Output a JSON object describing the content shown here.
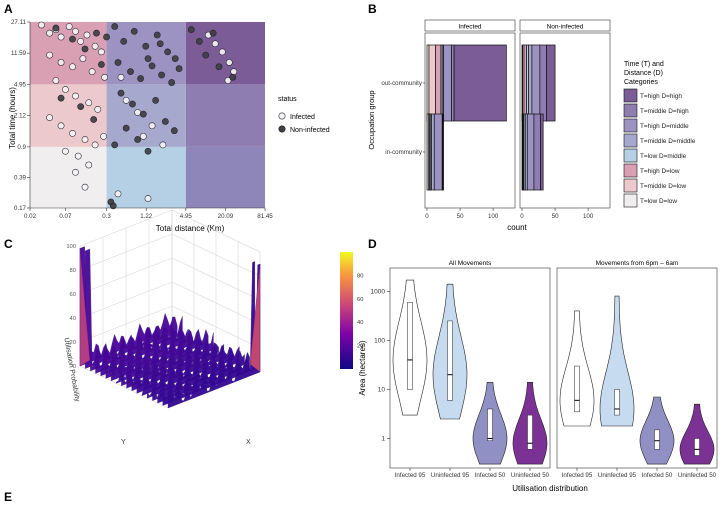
{
  "panel_letters": [
    "A",
    "B",
    "C",
    "D",
    "E"
  ],
  "chart_data": [
    {
      "panel": "A",
      "type": "scatter",
      "xlabel": "Total distance (Km)",
      "ylabel": "Total time (hours)",
      "xticks": [
        "0.02",
        "0.07",
        "0.3",
        "1.22",
        "4.95",
        "20.09",
        "81.45"
      ],
      "yticks": [
        "0.17",
        "0.39",
        "0.9",
        "2.12",
        "4.95",
        "11.59",
        "27.11"
      ],
      "legend": {
        "title": "status",
        "entries": [
          "Infected",
          "Non-infected"
        ]
      },
      "region_colors": [
        [
          "#f1eeef",
          "#b5cfe4",
          "#8e86b8"
        ],
        [
          "#ecc9cc",
          "#a6a8cd",
          "#8d7db0"
        ],
        [
          "#d9a0b4",
          "#9d93c2",
          "#7b5c96"
        ]
      ],
      "series": [
        {
          "name": "Infected",
          "color": "#f4f2f6",
          "points": [
            [
              0.03,
              25
            ],
            [
              0.04,
              20
            ],
            [
              0.05,
              22
            ],
            [
              0.06,
              18
            ],
            [
              0.08,
              24
            ],
            [
              0.1,
              21
            ],
            [
              0.12,
              16
            ],
            [
              0.15,
              19
            ],
            [
              0.2,
              14
            ],
            [
              0.25,
              12
            ],
            [
              0.04,
              11
            ],
            [
              0.06,
              9
            ],
            [
              0.09,
              8
            ],
            [
              0.13,
              10
            ],
            [
              0.18,
              7
            ],
            [
              0.28,
              6
            ],
            [
              0.05,
              5.5
            ],
            [
              0.07,
              4.3
            ],
            [
              0.1,
              3.6
            ],
            [
              0.16,
              3
            ],
            [
              0.22,
              2.5
            ],
            [
              0.04,
              2
            ],
            [
              0.06,
              1.6
            ],
            [
              0.09,
              1.3
            ],
            [
              0.14,
              1.1
            ],
            [
              0.2,
              0.95
            ],
            [
              0.27,
              1.2
            ],
            [
              0.07,
              0.8
            ],
            [
              0.11,
              0.7
            ],
            [
              0.16,
              0.55
            ],
            [
              0.1,
              0.45
            ],
            [
              0.14,
              0.3
            ],
            [
              0.6,
              3.2
            ],
            [
              0.9,
              2.3
            ],
            [
              1.5,
              1.6
            ],
            [
              0.5,
              6
            ],
            [
              1.1,
              1.2
            ],
            [
              2.2,
              0.95
            ],
            [
              0.45,
              0.25
            ],
            [
              1.3,
              0.22
            ],
            [
              11,
              19
            ],
            [
              14,
              15
            ],
            [
              18,
              12
            ],
            [
              23,
              9
            ],
            [
              27,
              7
            ],
            [
              22,
              5.5
            ]
          ]
        },
        {
          "name": "Non-infected",
          "color": "#3e3e44",
          "points": [
            [
              0.05,
              23
            ],
            [
              0.09,
              17
            ],
            [
              0.14,
              13
            ],
            [
              0.21,
              20
            ],
            [
              0.3,
              18
            ],
            [
              0.4,
              24
            ],
            [
              0.55,
              16
            ],
            [
              0.8,
              21
            ],
            [
              1.2,
              14
            ],
            [
              1.8,
              19
            ],
            [
              2.6,
              12
            ],
            [
              3.4,
              10
            ],
            [
              0.45,
              9
            ],
            [
              0.7,
              7
            ],
            [
              1.0,
              5.8
            ],
            [
              1.5,
              8.2
            ],
            [
              2.1,
              6.4
            ],
            [
              3.0,
              5.2
            ],
            [
              3.9,
              7.6
            ],
            [
              0.5,
              3.9
            ],
            [
              0.75,
              2.9
            ],
            [
              1.1,
              2.2
            ],
            [
              1.7,
              3.2
            ],
            [
              2.4,
              1.8
            ],
            [
              3.3,
              1.4
            ],
            [
              0.6,
              1.5
            ],
            [
              0.9,
              1.1
            ],
            [
              1.3,
              0.8
            ],
            [
              0.4,
              0.95
            ],
            [
              0.35,
              0.2
            ],
            [
              0.38,
              0.18
            ],
            [
              0.06,
              3.4
            ],
            [
              0.12,
              2.7
            ],
            [
              0.19,
              1.9
            ],
            [
              6,
              22
            ],
            [
              8,
              16
            ],
            [
              10,
              11
            ],
            [
              13,
              20
            ],
            [
              16,
              8
            ],
            [
              26,
              6
            ],
            [
              1.3,
              10
            ],
            [
              2.0,
              15
            ],
            [
              0.25,
              8.5
            ]
          ]
        }
      ]
    },
    {
      "panel": "B",
      "type": "bar",
      "orientation": "horizontal",
      "stacked": true,
      "facets": [
        "Infected",
        "Non-infected"
      ],
      "categories": [
        "out-community",
        "in-community"
      ],
      "ylabel": "Occupation group",
      "xlabel": "count",
      "xticks": [
        "0",
        "50",
        "100"
      ],
      "xlim": [
        0,
        130
      ],
      "legend": {
        "title": "Time (T) and Distance (D) Categories",
        "entries": [
          "T=high D=high",
          "T=middle D=high",
          "T=high D=middle",
          "T=middle D=middle",
          "T=low D=middle",
          "T=high D=low",
          "T=middle D=low",
          "T=low D=low"
        ],
        "colors": [
          "#7b5c96",
          "#8d7db0",
          "#9d93c2",
          "#a6a8cd",
          "#b5cfe4",
          "#d9a0b4",
          "#ecc9cc",
          "#f1eeef"
        ]
      },
      "series": [
        {
          "name": "T=low D=low",
          "values": {
            "Infected": [
              3,
              2
            ],
            "Non-infected": [
              1,
              1
            ]
          }
        },
        {
          "name": "T=middle D=low",
          "values": {
            "Infected": [
              10,
              2
            ],
            "Non-infected": [
              2,
              1
            ]
          }
        },
        {
          "name": "T=high D=low",
          "values": {
            "Infected": [
              8,
              1
            ],
            "Non-infected": [
              4,
              1
            ]
          }
        },
        {
          "name": "T=low D=middle",
          "values": {
            "Infected": [
              2,
              2
            ],
            "Non-infected": [
              3,
              2
            ]
          }
        },
        {
          "name": "T=middle D=middle",
          "values": {
            "Infected": [
              2,
              4
            ],
            "Non-infected": [
              5,
              3
            ]
          }
        },
        {
          "name": "T=high D=middle",
          "values": {
            "Infected": [
              12,
              12
            ],
            "Non-infected": [
              12,
              10
            ]
          }
        },
        {
          "name": "T=middle D=high",
          "values": {
            "Infected": [
              4,
              1
            ],
            "Non-infected": [
              10,
              10
            ]
          }
        },
        {
          "name": "T=high D=high",
          "values": {
            "Infected": [
              79,
              1
            ],
            "Non-infected": [
              13,
              4
            ]
          }
        }
      ]
    },
    {
      "panel": "C",
      "type": "surface3d",
      "zlabel": "Utilisation Probability",
      "axis_labels": [
        "Y",
        "X"
      ],
      "zticks": [
        "0",
        "20",
        "40",
        "60",
        "80",
        "100"
      ],
      "colorbar_ticks": [
        "20",
        "40",
        "60",
        "80"
      ],
      "colorbar_range": [
        0,
        100
      ]
    },
    {
      "panel": "D",
      "type": "violin",
      "facets": [
        "All Movements",
        "Movements from 6pm – 6am"
      ],
      "categories": [
        "Infected 95",
        "Uninfected 95",
        "Infected 50",
        "Uninfected 50"
      ],
      "ylabel": "Area (hectares)",
      "xlabel": "Utilisation distribution",
      "yscale": "log",
      "yticks": [
        "1",
        "10",
        "100",
        "1000"
      ],
      "colors": [
        "#ffffff",
        "#c6dbef",
        "#9090c4",
        "#7b3294"
      ],
      "groups": {
        "All Movements": [
          {
            "min": 3,
            "q1": 10,
            "median": 40,
            "q3": 600,
            "max": 1700
          },
          {
            "min": 2.5,
            "q1": 6,
            "median": 20,
            "q3": 250,
            "max": 1400
          },
          {
            "min": 0.3,
            "q1": 0.9,
            "median": 1.0,
            "q3": 4,
            "max": 14
          },
          {
            "min": 0.3,
            "q1": 0.6,
            "median": 0.8,
            "q3": 3,
            "max": 14
          }
        ],
        "Movements from 6pm – 6am": [
          {
            "min": 1.8,
            "q1": 3.5,
            "median": 6,
            "q3": 30,
            "max": 400
          },
          {
            "min": 1.8,
            "q1": 3,
            "median": 4,
            "q3": 10,
            "max": 800
          },
          {
            "min": 0.3,
            "q1": 0.6,
            "median": 0.9,
            "q3": 1.5,
            "max": 7
          },
          {
            "min": 0.3,
            "q1": 0.45,
            "median": 0.6,
            "q3": 1.0,
            "max": 5
          }
        ]
      }
    }
  ]
}
